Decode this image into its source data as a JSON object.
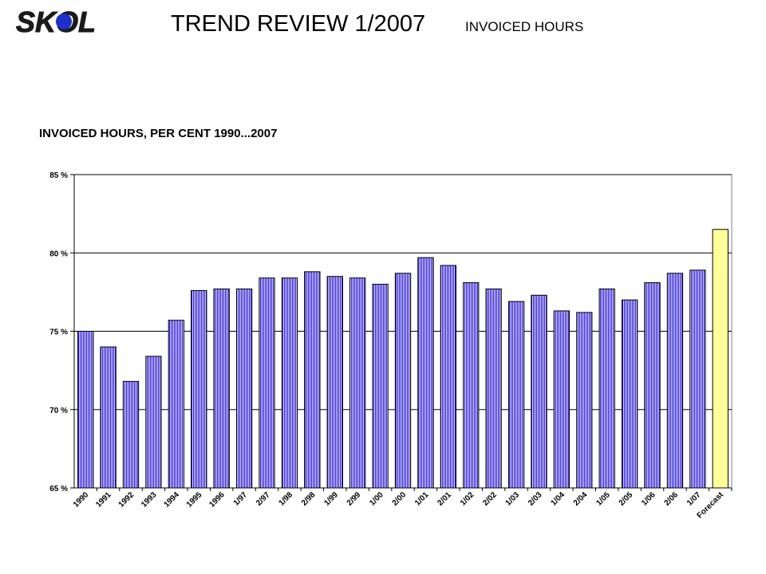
{
  "header": {
    "logo_text": "SKOL",
    "title": "TREND REVIEW 1/2007",
    "subtitle": "INVOICED HOURS"
  },
  "colors": {
    "bar_stripe_dark": "#2e1fd0",
    "bar_stripe_light": "#d9d4ff",
    "forecast_fill": "#ffff99",
    "gridline": "#000000",
    "plot_background": "#ffffff",
    "logo": "#1a1a1a",
    "logo_dot": "#1d2fc8"
  },
  "chart_data": {
    "type": "bar",
    "title": "INVOICED HOURS, PER CENT 1990...2007",
    "xlabel": "",
    "ylabel": "",
    "ylim": [
      65,
      85
    ],
    "yticks": [
      65,
      70,
      75,
      80,
      85
    ],
    "ytick_labels": [
      "65 %",
      "70 %",
      "75 %",
      "80 %",
      "85 %"
    ],
    "grid": true,
    "legend": "none",
    "categories": [
      "1990",
      "1991",
      "1992",
      "1993",
      "1994",
      "1995",
      "1996",
      "1/97",
      "2/97",
      "1/98",
      "2/98",
      "1/99",
      "2/99",
      "1/00",
      "2/00",
      "1/01",
      "2/01",
      "1/02",
      "2/02",
      "1/03",
      "2/03",
      "1/04",
      "2/04",
      "1/05",
      "2/05",
      "1/06",
      "2/06",
      "1/07",
      "Forecast"
    ],
    "values": [
      75.0,
      74.0,
      71.8,
      73.4,
      75.7,
      77.6,
      77.7,
      77.7,
      78.4,
      78.4,
      78.8,
      78.5,
      78.4,
      78.0,
      78.7,
      79.7,
      79.2,
      78.1,
      77.7,
      76.9,
      77.3,
      76.3,
      76.2,
      77.7,
      77.0,
      78.1,
      78.7,
      78.9,
      81.5
    ],
    "highlight_category": "Forecast"
  }
}
